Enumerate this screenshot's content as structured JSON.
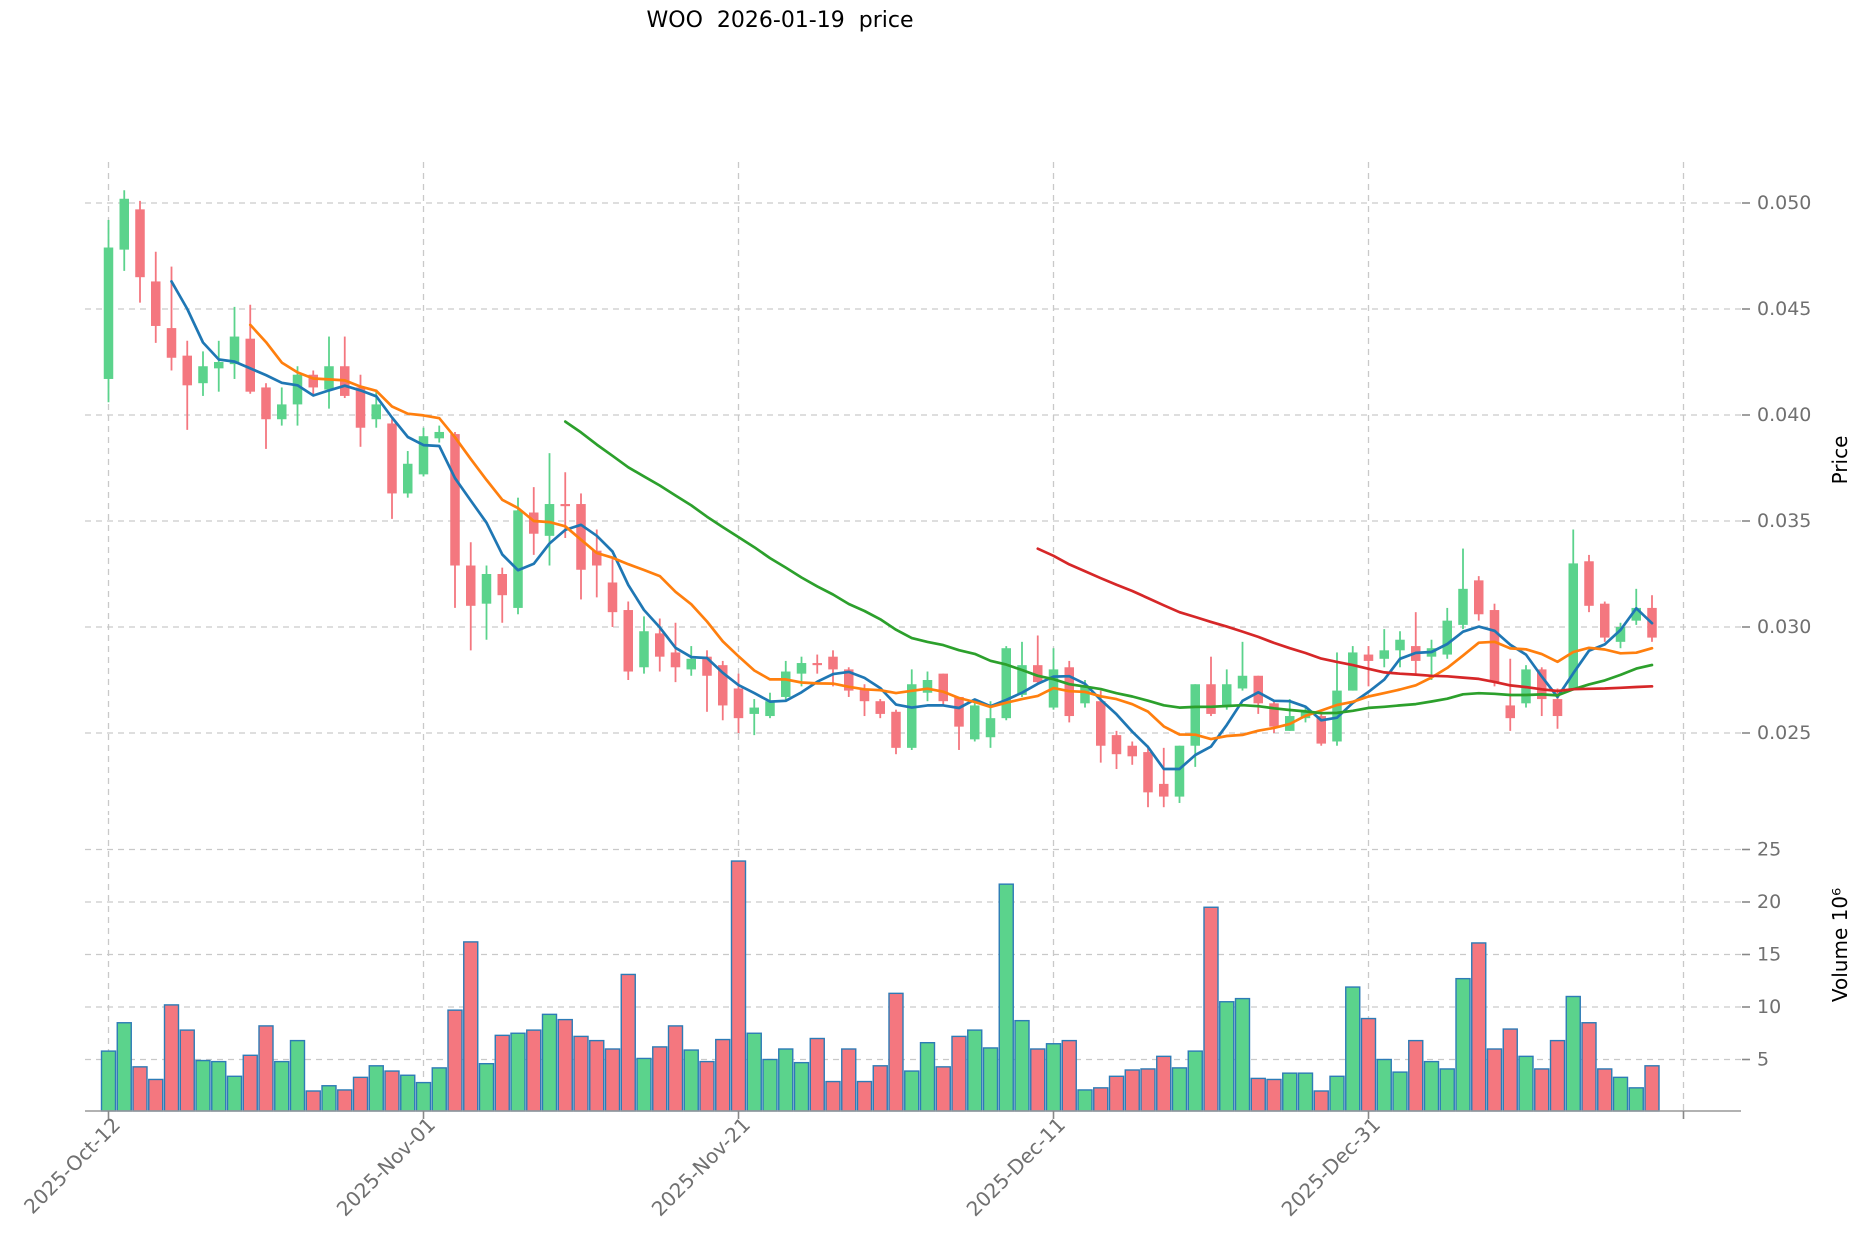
{
  "title": "WOO  2026-01-19  price",
  "chart_data": {
    "type": "candlestick",
    "title": "WOO  2026-01-19  price",
    "price_axis": {
      "label": "Price",
      "ticks": [
        {
          "label": "0.050",
          "value": 0.05
        },
        {
          "label": "0.045",
          "value": 0.045
        },
        {
          "label": "0.040",
          "value": 0.04
        },
        {
          "label": "0.035",
          "value": 0.035
        },
        {
          "label": "0.030",
          "value": 0.03
        },
        {
          "label": "0.025",
          "value": 0.025
        }
      ],
      "ylim": [
        0.0211,
        0.0519
      ]
    },
    "volume_axis": {
      "label": "Volume  10⁶",
      "ticks": [
        {
          "label": "25",
          "value": 25
        },
        {
          "label": "20",
          "value": 20
        },
        {
          "label": "15",
          "value": 15
        },
        {
          "label": "10",
          "value": 10
        },
        {
          "label": "5",
          "value": 5
        }
      ],
      "ylim": [
        0,
        28
      ]
    },
    "x_axis": {
      "ticks": [
        {
          "label": "2025-Oct-12",
          "day": 0
        },
        {
          "label": "2025-Nov-01",
          "day": 20
        },
        {
          "label": "2025-Nov-21",
          "day": 40
        },
        {
          "label": "2025-Dec-11",
          "day": 60
        },
        {
          "label": "2025-Dec-31",
          "day": 80
        },
        {
          "label": "",
          "day": 100
        }
      ],
      "grid": true
    },
    "moving_averages": [
      {
        "name": "SMA-5",
        "period": 5,
        "color": "#1f77b4"
      },
      {
        "name": "SMA-10",
        "period": 10,
        "color": "#ff7f0e"
      },
      {
        "name": "SMA-30",
        "period": 30,
        "color": "#2ca02c"
      },
      {
        "name": "SMA-60",
        "period": 60,
        "color": "#d62728"
      }
    ],
    "colors": {
      "up": "#5bd38c",
      "down": "#f4777f",
      "volume_edge": "#2d7bb6",
      "grid": "#c9c9c9",
      "tick_text": "#707070",
      "axis_label_text": "#000000",
      "spine": "#999999"
    },
    "columns": [
      "date",
      "open",
      "high",
      "low",
      "close",
      "volume_millions"
    ],
    "ohlcv": [
      [
        "2025-10-12",
        0.0417,
        0.0492,
        0.0406,
        0.0479,
        5.8
      ],
      [
        "2025-10-13",
        0.0478,
        0.0506,
        0.0468,
        0.0502,
        8.5
      ],
      [
        "2025-10-14",
        0.0497,
        0.0501,
        0.0453,
        0.0465,
        4.3
      ],
      [
        "2025-10-15",
        0.0463,
        0.0477,
        0.0434,
        0.0442,
        3.1
      ],
      [
        "2025-10-16",
        0.0441,
        0.047,
        0.0421,
        0.0427,
        10.2
      ],
      [
        "2025-10-17",
        0.0428,
        0.0435,
        0.0393,
        0.0414,
        7.8
      ],
      [
        "2025-10-18",
        0.0415,
        0.043,
        0.0409,
        0.0423,
        4.9
      ],
      [
        "2025-10-19",
        0.0422,
        0.0435,
        0.0411,
        0.0425,
        4.8
      ],
      [
        "2025-10-20",
        0.0424,
        0.0451,
        0.0417,
        0.0437,
        3.4
      ],
      [
        "2025-10-21",
        0.0436,
        0.0452,
        0.041,
        0.0411,
        5.4
      ],
      [
        "2025-10-22",
        0.0413,
        0.0415,
        0.0384,
        0.0398,
        8.2
      ],
      [
        "2025-10-23",
        0.0398,
        0.0413,
        0.0395,
        0.0405,
        4.8
      ],
      [
        "2025-10-24",
        0.0405,
        0.0423,
        0.0395,
        0.0419,
        6.8
      ],
      [
        "2025-10-25",
        0.0419,
        0.0421,
        0.0409,
        0.0413,
        2.0
      ],
      [
        "2025-10-26",
        0.0412,
        0.0437,
        0.0403,
        0.0423,
        2.5
      ],
      [
        "2025-10-27",
        0.0423,
        0.0437,
        0.0408,
        0.0409,
        2.1
      ],
      [
        "2025-10-28",
        0.0413,
        0.0419,
        0.0385,
        0.0394,
        3.3
      ],
      [
        "2025-10-29",
        0.0398,
        0.0412,
        0.0394,
        0.0405,
        4.4
      ],
      [
        "2025-10-30",
        0.0396,
        0.0398,
        0.0351,
        0.0363,
        3.9
      ],
      [
        "2025-10-31",
        0.0363,
        0.0383,
        0.0361,
        0.0377,
        3.5
      ],
      [
        "2025-11-01",
        0.0372,
        0.0394,
        0.0371,
        0.039,
        2.8
      ],
      [
        "2025-11-02",
        0.0389,
        0.0395,
        0.0387,
        0.0392,
        4.2
      ],
      [
        "2025-11-03",
        0.0391,
        0.0392,
        0.0309,
        0.0329,
        9.7
      ],
      [
        "2025-11-04",
        0.0329,
        0.034,
        0.0289,
        0.031,
        16.2
      ],
      [
        "2025-11-05",
        0.0311,
        0.0329,
        0.0294,
        0.0325,
        4.6
      ],
      [
        "2025-11-06",
        0.0325,
        0.0328,
        0.0302,
        0.0315,
        7.3
      ],
      [
        "2025-11-07",
        0.0309,
        0.0361,
        0.0306,
        0.0355,
        7.5
      ],
      [
        "2025-11-08",
        0.0354,
        0.0366,
        0.0334,
        0.0344,
        7.8
      ],
      [
        "2025-11-09",
        0.0343,
        0.0382,
        0.0329,
        0.0358,
        9.3
      ],
      [
        "2025-11-10",
        0.0358,
        0.0373,
        0.0342,
        0.0357,
        8.8
      ],
      [
        "2025-11-11",
        0.0358,
        0.0363,
        0.0313,
        0.0327,
        7.2
      ],
      [
        "2025-11-12",
        0.0336,
        0.0346,
        0.0314,
        0.0329,
        6.8
      ],
      [
        "2025-11-13",
        0.0321,
        0.0332,
        0.03,
        0.0307,
        6.0
      ],
      [
        "2025-11-14",
        0.0308,
        0.0312,
        0.0275,
        0.0279,
        13.1
      ],
      [
        "2025-11-15",
        0.0281,
        0.0305,
        0.0278,
        0.0298,
        5.1
      ],
      [
        "2025-11-16",
        0.0297,
        0.0304,
        0.0279,
        0.0286,
        6.2
      ],
      [
        "2025-11-17",
        0.0288,
        0.0302,
        0.0274,
        0.0281,
        8.2
      ],
      [
        "2025-11-18",
        0.028,
        0.0291,
        0.0277,
        0.0285,
        5.9
      ],
      [
        "2025-11-19",
        0.0286,
        0.0289,
        0.026,
        0.0277,
        4.8
      ],
      [
        "2025-11-20",
        0.0282,
        0.0284,
        0.0256,
        0.0263,
        6.9
      ],
      [
        "2025-11-21",
        0.0271,
        0.0278,
        0.025,
        0.0257,
        23.9
      ],
      [
        "2025-11-22",
        0.0259,
        0.0266,
        0.0249,
        0.0262,
        7.5
      ],
      [
        "2025-11-23",
        0.0258,
        0.0269,
        0.0257,
        0.0265,
        5.0
      ],
      [
        "2025-11-24",
        0.0267,
        0.0284,
        0.0265,
        0.0279,
        6.0
      ],
      [
        "2025-11-25",
        0.0278,
        0.0286,
        0.0272,
        0.0283,
        4.7
      ],
      [
        "2025-11-26",
        0.0283,
        0.0287,
        0.0278,
        0.0282,
        7.0
      ],
      [
        "2025-11-27",
        0.0286,
        0.0289,
        0.0272,
        0.028,
        2.9
      ],
      [
        "2025-11-28",
        0.028,
        0.0281,
        0.0267,
        0.027,
        6.0
      ],
      [
        "2025-11-29",
        0.0271,
        0.0273,
        0.0258,
        0.0265,
        2.9
      ],
      [
        "2025-11-30",
        0.0265,
        0.0266,
        0.0257,
        0.0259,
        4.4
      ],
      [
        "2025-12-01",
        0.026,
        0.0261,
        0.024,
        0.0243,
        11.3
      ],
      [
        "2025-12-02",
        0.0243,
        0.028,
        0.0242,
        0.0273,
        3.9
      ],
      [
        "2025-12-03",
        0.0269,
        0.0279,
        0.0265,
        0.0275,
        6.6
      ],
      [
        "2025-12-04",
        0.0278,
        0.0278,
        0.0263,
        0.0265,
        4.3
      ],
      [
        "2025-12-05",
        0.0267,
        0.0267,
        0.0242,
        0.0253,
        7.2
      ],
      [
        "2025-12-06",
        0.0247,
        0.0265,
        0.0246,
        0.0263,
        7.8
      ],
      [
        "2025-12-07",
        0.0248,
        0.0265,
        0.0243,
        0.0257,
        6.1
      ],
      [
        "2025-12-08",
        0.0257,
        0.0291,
        0.0256,
        0.029,
        21.7
      ],
      [
        "2025-12-09",
        0.0268,
        0.0293,
        0.0267,
        0.0282,
        8.7
      ],
      [
        "2025-12-10",
        0.0282,
        0.0296,
        0.0273,
        0.0274,
        6.0
      ],
      [
        "2025-12-11",
        0.0262,
        0.029,
        0.0261,
        0.028,
        6.5
      ],
      [
        "2025-12-12",
        0.0281,
        0.0284,
        0.0255,
        0.0258,
        6.8
      ],
      [
        "2025-12-13",
        0.0264,
        0.0275,
        0.0262,
        0.0272,
        2.1
      ],
      [
        "2025-12-14",
        0.0265,
        0.027,
        0.0236,
        0.0244,
        2.3
      ],
      [
        "2025-12-15",
        0.0249,
        0.0251,
        0.0233,
        0.024,
        3.4
      ],
      [
        "2025-12-16",
        0.0244,
        0.0246,
        0.0235,
        0.0239,
        4.0
      ],
      [
        "2025-12-17",
        0.0241,
        0.0244,
        0.0215,
        0.0222,
        4.1
      ],
      [
        "2025-12-18",
        0.0226,
        0.0243,
        0.0215,
        0.022,
        5.3
      ],
      [
        "2025-12-19",
        0.022,
        0.0244,
        0.0217,
        0.0244,
        4.2
      ],
      [
        "2025-12-20",
        0.0244,
        0.0273,
        0.0234,
        0.0273,
        5.8
      ],
      [
        "2025-12-21",
        0.0273,
        0.0286,
        0.0258,
        0.0259,
        19.5
      ],
      [
        "2025-12-22",
        0.0263,
        0.028,
        0.0261,
        0.0273,
        10.5
      ],
      [
        "2025-12-23",
        0.0271,
        0.0293,
        0.027,
        0.0277,
        10.8
      ],
      [
        "2025-12-24",
        0.0277,
        0.0277,
        0.0259,
        0.0264,
        3.2
      ],
      [
        "2025-12-25",
        0.0264,
        0.0265,
        0.025,
        0.0253,
        3.1
      ],
      [
        "2025-12-26",
        0.0251,
        0.0266,
        0.0251,
        0.0258,
        3.7
      ],
      [
        "2025-12-27",
        0.0257,
        0.0262,
        0.0255,
        0.026,
        3.7
      ],
      [
        "2025-12-28",
        0.0258,
        0.026,
        0.0244,
        0.0245,
        2.0
      ],
      [
        "2025-12-29",
        0.0246,
        0.0288,
        0.0244,
        0.027,
        3.4
      ],
      [
        "2025-12-30",
        0.027,
        0.0291,
        0.027,
        0.0288,
        11.9
      ],
      [
        "2025-12-31",
        0.0287,
        0.0291,
        0.0272,
        0.0284,
        8.9
      ],
      [
        "2026-01-01",
        0.0285,
        0.0299,
        0.0281,
        0.0289,
        5.0
      ],
      [
        "2026-01-02",
        0.0289,
        0.0298,
        0.0281,
        0.0294,
        3.8
      ],
      [
        "2026-01-03",
        0.0291,
        0.0307,
        0.0278,
        0.0284,
        6.8
      ],
      [
        "2026-01-04",
        0.0286,
        0.0294,
        0.0275,
        0.029,
        4.8
      ],
      [
        "2026-01-05",
        0.0287,
        0.0309,
        0.0285,
        0.0303,
        4.1
      ],
      [
        "2026-01-06",
        0.0301,
        0.0337,
        0.0299,
        0.0318,
        12.7
      ],
      [
        "2026-01-07",
        0.0322,
        0.0324,
        0.0303,
        0.0306,
        16.1
      ],
      [
        "2026-01-08",
        0.0308,
        0.0311,
        0.0272,
        0.0274,
        6.0
      ],
      [
        "2026-01-09",
        0.0263,
        0.0285,
        0.0251,
        0.0257,
        7.9
      ],
      [
        "2026-01-10",
        0.0264,
        0.0282,
        0.0262,
        0.028,
        5.3
      ],
      [
        "2026-01-11",
        0.028,
        0.0281,
        0.0258,
        0.0266,
        4.1
      ],
      [
        "2026-01-12",
        0.0266,
        0.0271,
        0.0252,
        0.0258,
        6.8
      ],
      [
        "2026-01-13",
        0.0271,
        0.0346,
        0.027,
        0.033,
        11.0
      ],
      [
        "2026-01-14",
        0.0331,
        0.0334,
        0.0307,
        0.031,
        8.5
      ],
      [
        "2026-01-15",
        0.0311,
        0.0312,
        0.0293,
        0.0295,
        4.1
      ],
      [
        "2026-01-16",
        0.0293,
        0.0302,
        0.029,
        0.03,
        3.3
      ],
      [
        "2026-01-17",
        0.0303,
        0.0318,
        0.0301,
        0.0309,
        2.3
      ],
      [
        "2026-01-18",
        0.0309,
        0.0315,
        0.0293,
        0.0295,
        4.4
      ]
    ]
  }
}
